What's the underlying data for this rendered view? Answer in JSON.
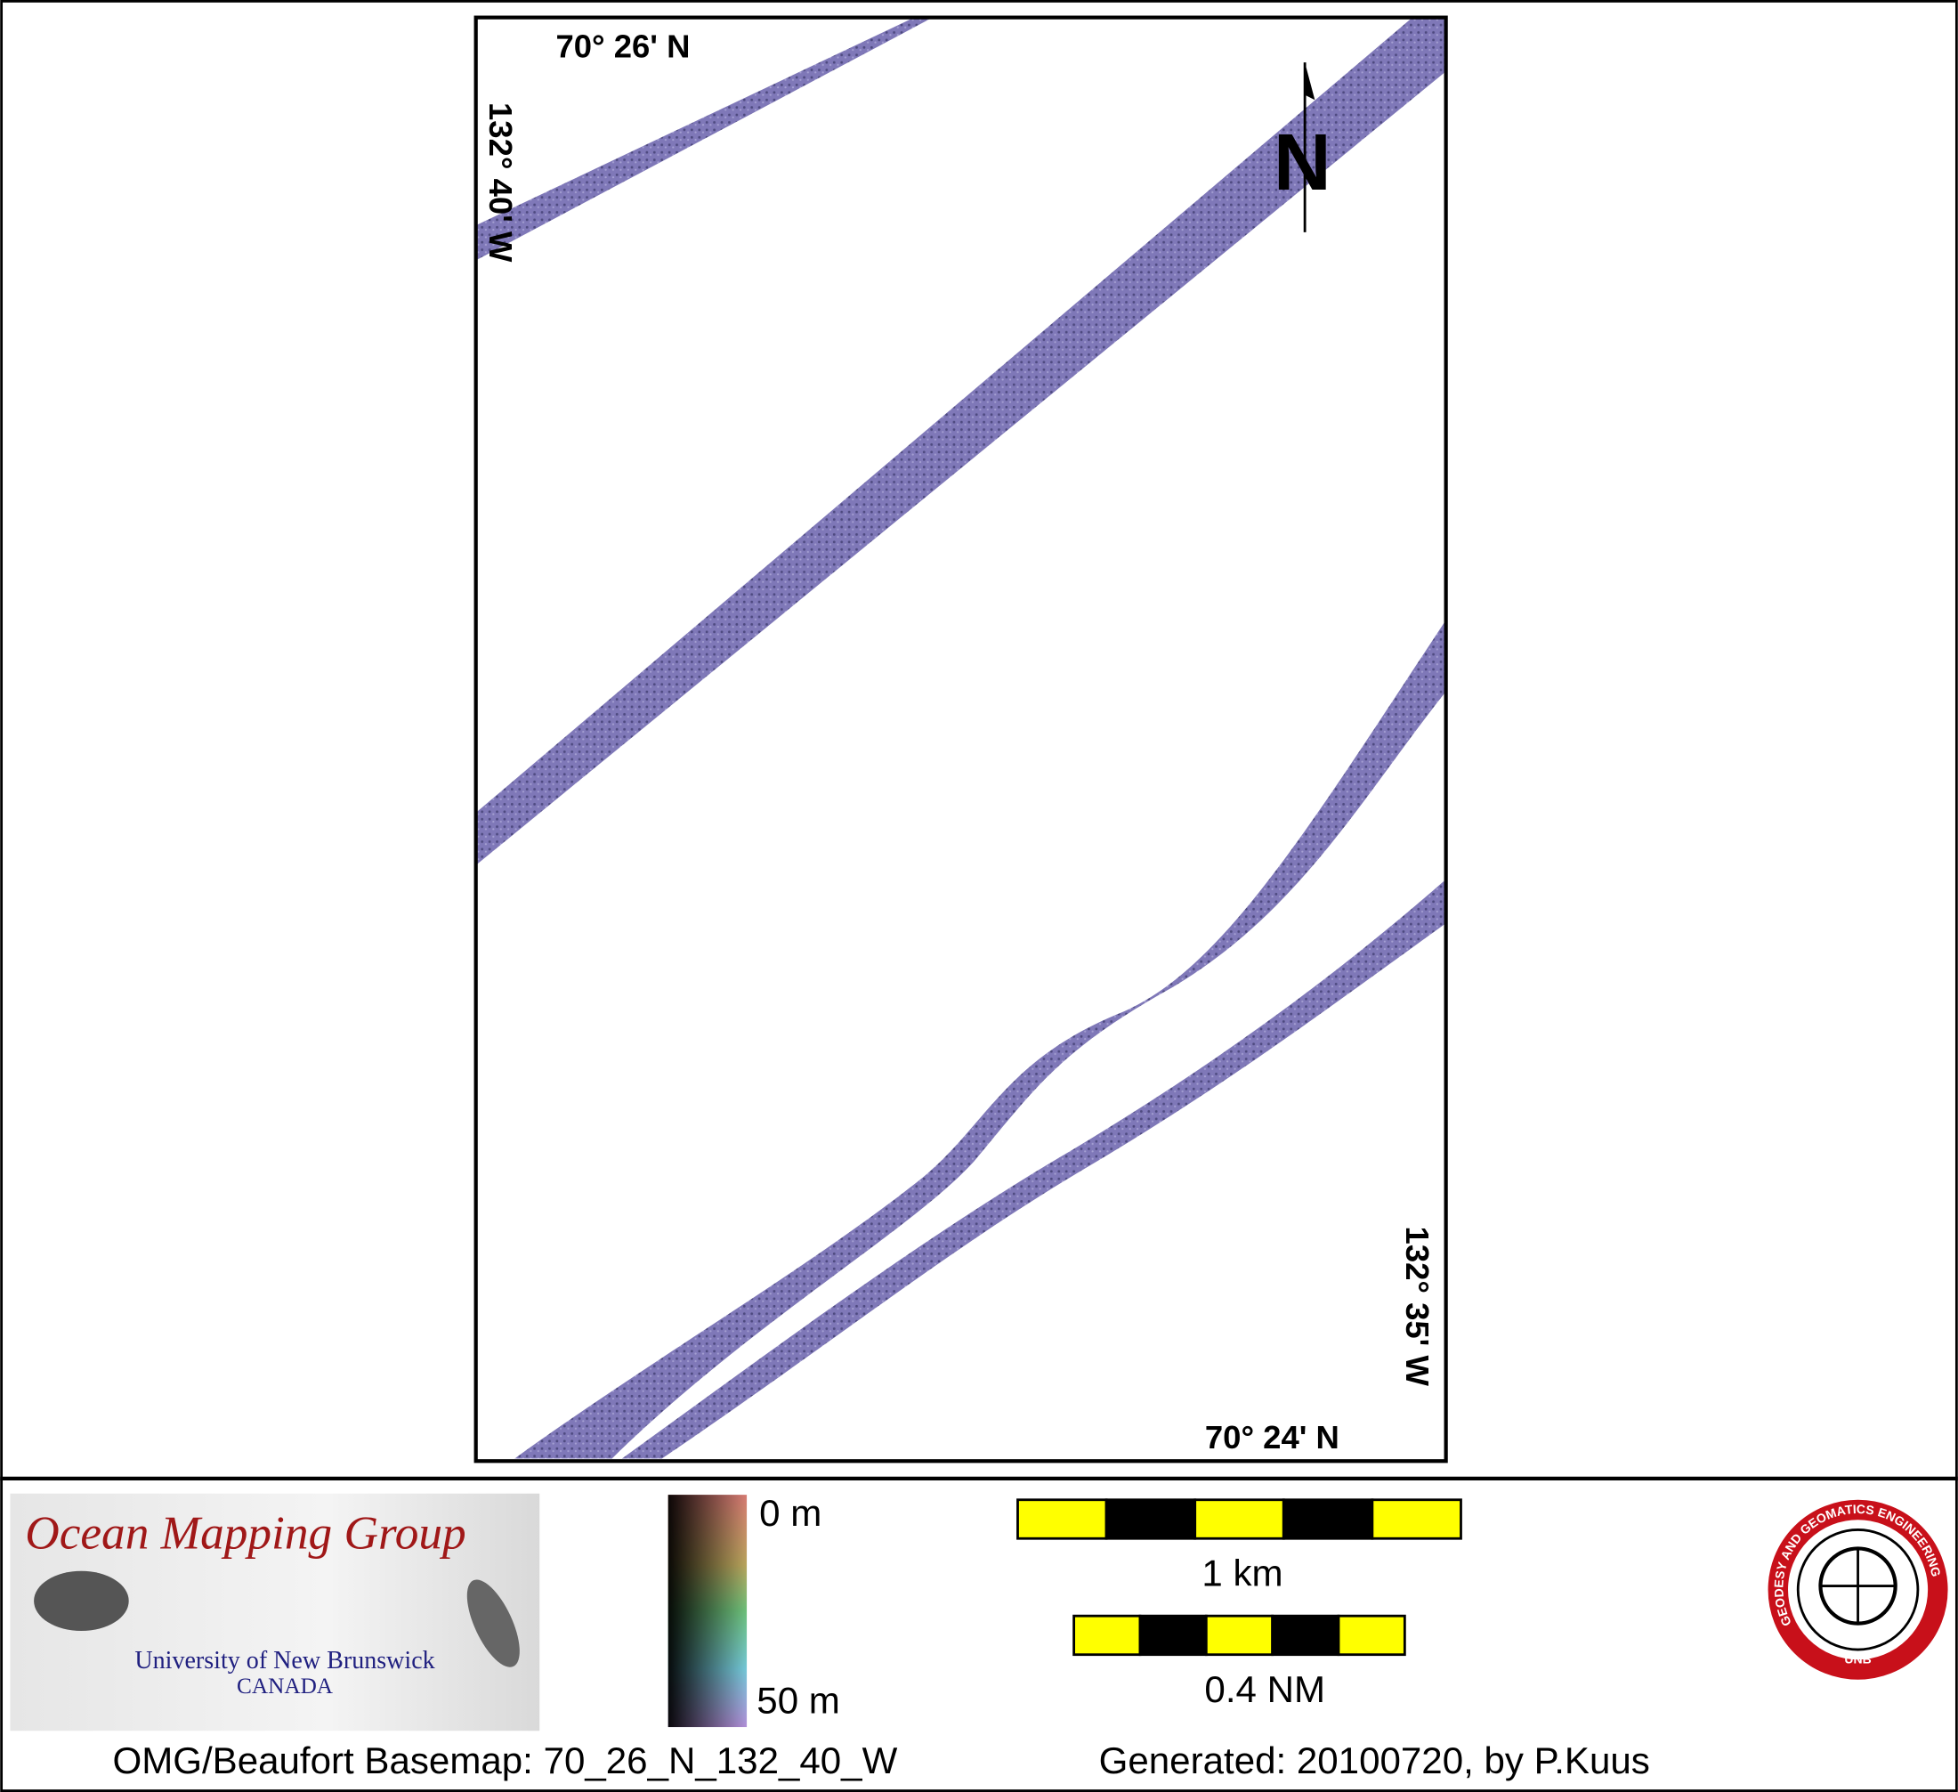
{
  "map": {
    "top_latitude": "70° 26' N",
    "left_longitude": "132° 40' W",
    "right_longitude": "132° 35' W",
    "bottom_latitude": "70° 24' N",
    "north_arrow": "N"
  },
  "depth_legend": {
    "top": "0 m",
    "bottom": "50 m"
  },
  "scale_bars": [
    "1 km",
    "0.4 NM"
  ],
  "logo": {
    "title": "Ocean Mapping Group",
    "university": "University of New Brunswick",
    "country": "CANADA"
  },
  "seal": {
    "ring": "GEODESY AND GEOMATICS ENGINEERING",
    "center": "UNB"
  },
  "footer": {
    "basemap": "OMG/Beaufort Basemap: 70_26_N_132_40_W",
    "generated": "Generated: 20100720, by P.Kuus"
  }
}
